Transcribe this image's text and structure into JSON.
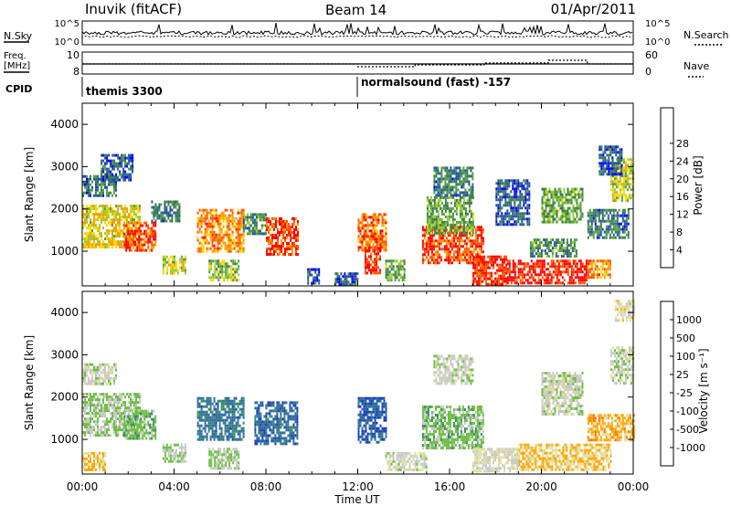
{
  "header": {
    "station": "Inuvik (fitACF)",
    "beam": "Beam 14",
    "date": "01/Apr/2011"
  },
  "summary_panels": {
    "nsky_label": "N.Sky",
    "nsky_ticks": [
      "10^5",
      "10^0"
    ],
    "nsearch_label": "N.Search",
    "nsearch_ticks": [
      "10^5",
      "10^0"
    ],
    "freq_label_line1": "Freq.",
    "freq_label_line2": "[MHz]",
    "freq_ticks": [
      "10",
      "8"
    ],
    "nave_label": "Nave",
    "nave_ticks": [
      "60",
      "0"
    ],
    "cpid_label": "CPID",
    "cpid_segments": [
      {
        "label": "themis 3300",
        "start_hour": 0
      },
      {
        "label": "normalsound (fast) -157",
        "start_hour": 12
      }
    ]
  },
  "colors": {
    "power_scale": [
      "#0000ff",
      "#2050b0",
      "#3a7a50",
      "#55a040",
      "#9acd32",
      "#ffd700",
      "#ff9900",
      "#ff5500",
      "#ff0000"
    ],
    "velocity_scale": [
      "#1a3fc0",
      "#2e6aa0",
      "#3a8a6a",
      "#6cc040",
      "#c8c8c8",
      "#e0e0a0",
      "#ffa500",
      "#ff7000",
      "#ff2000"
    ]
  },
  "chart_data": [
    {
      "type": "heatmap",
      "title": "Power",
      "ylabel": "Slant Range [km]",
      "xlabel": "Time UT",
      "xlim_hours": [
        0,
        24
      ],
      "ylim": [
        180,
        4500
      ],
      "yticks": [
        1000,
        2000,
        3000,
        4000
      ],
      "xticks": [
        "00:00",
        "04:00",
        "08:00",
        "12:00",
        "16:00",
        "20:00",
        "00:00"
      ],
      "colorbar": {
        "label": "Power [dB]",
        "ticks": [
          "4",
          "8",
          "12",
          "16",
          "20",
          "24",
          "28"
        ],
        "range": [
          0,
          30
        ]
      },
      "patches": [
        {
          "t0": 0.0,
          "t1": 2.5,
          "r0": 1100,
          "r1": 2100,
          "value": 18
        },
        {
          "t0": 1.8,
          "t1": 3.2,
          "r0": 1000,
          "r1": 1700,
          "value": 26
        },
        {
          "t0": 0.0,
          "t1": 1.5,
          "r0": 2300,
          "r1": 2800,
          "value": 8
        },
        {
          "t0": 0.8,
          "t1": 2.2,
          "r0": 2700,
          "r1": 3300,
          "value": 6
        },
        {
          "t0": 3.0,
          "t1": 4.2,
          "r0": 1700,
          "r1": 2200,
          "value": 8
        },
        {
          "t0": 3.5,
          "t1": 4.5,
          "r0": 500,
          "r1": 900,
          "value": 16
        },
        {
          "t0": 5.0,
          "t1": 7.0,
          "r0": 1000,
          "r1": 2000,
          "value": 22
        },
        {
          "t0": 5.5,
          "t1": 6.8,
          "r0": 300,
          "r1": 800,
          "value": 14
        },
        {
          "t0": 7.0,
          "t1": 8.0,
          "r0": 1400,
          "r1": 1900,
          "value": 10
        },
        {
          "t0": 8.0,
          "t1": 9.4,
          "r0": 900,
          "r1": 1800,
          "value": 26
        },
        {
          "t0": 9.8,
          "t1": 10.3,
          "r0": 250,
          "r1": 600,
          "value": 6
        },
        {
          "t0": 11.0,
          "t1": 12.0,
          "r0": 200,
          "r1": 500,
          "value": 6
        },
        {
          "t0": 12.0,
          "t1": 13.2,
          "r0": 1000,
          "r1": 1900,
          "value": 24
        },
        {
          "t0": 12.3,
          "t1": 13.0,
          "r0": 500,
          "r1": 1100,
          "value": 28
        },
        {
          "t0": 13.2,
          "t1": 14.0,
          "r0": 300,
          "r1": 800,
          "value": 12
        },
        {
          "t0": 14.8,
          "t1": 17.5,
          "r0": 700,
          "r1": 1600,
          "value": 26
        },
        {
          "t0": 15.0,
          "t1": 17.0,
          "r0": 1400,
          "r1": 2300,
          "value": 12
        },
        {
          "t0": 15.3,
          "t1": 17.0,
          "r0": 2300,
          "r1": 3000,
          "value": 8
        },
        {
          "t0": 17.0,
          "t1": 18.5,
          "r0": 250,
          "r1": 900,
          "value": 28
        },
        {
          "t0": 18.0,
          "t1": 19.5,
          "r0": 1600,
          "r1": 2700,
          "value": 6
        },
        {
          "t0": 18.5,
          "t1": 22.0,
          "r0": 250,
          "r1": 800,
          "value": 28
        },
        {
          "t0": 19.5,
          "t1": 21.5,
          "r0": 900,
          "r1": 1300,
          "value": 10
        },
        {
          "t0": 20.0,
          "t1": 21.8,
          "r0": 1700,
          "r1": 2500,
          "value": 12
        },
        {
          "t0": 22.0,
          "t1": 23.0,
          "r0": 400,
          "r1": 800,
          "value": 22
        },
        {
          "t0": 22.0,
          "t1": 23.8,
          "r0": 1300,
          "r1": 2000,
          "value": 8
        },
        {
          "t0": 23.0,
          "t1": 24.0,
          "r0": 2200,
          "r1": 3200,
          "value": 16
        },
        {
          "t0": 22.5,
          "t1": 23.5,
          "r0": 2800,
          "r1": 3500,
          "value": 6
        }
      ]
    },
    {
      "type": "heatmap",
      "title": "Velocity",
      "ylabel": "Slant Range [km]",
      "xlabel": "Time UT",
      "xlim_hours": [
        0,
        24
      ],
      "ylim": [
        180,
        4500
      ],
      "yticks": [
        1000,
        2000,
        3000,
        4000
      ],
      "xticks": [
        "00:00",
        "04:00",
        "08:00",
        "12:00",
        "16:00",
        "20:00",
        "00:00"
      ],
      "colorbar": {
        "label": "Velocity [m s⁻¹]",
        "ticks": [
          "1000",
          "500",
          "100",
          "25",
          "-25",
          "-100",
          "-500",
          "-1000"
        ],
        "range": [
          -1200,
          1200
        ]
      },
      "patches": [
        {
          "t0": 0.0,
          "t1": 2.5,
          "r0": 1100,
          "r1": 2100,
          "value": 150
        },
        {
          "t0": 1.8,
          "t1": 3.2,
          "r0": 1000,
          "r1": 1700,
          "value": 300
        },
        {
          "t0": 0.0,
          "t1": 1.5,
          "r0": 2300,
          "r1": 2800,
          "value": 0
        },
        {
          "t0": 0.0,
          "t1": 1.0,
          "r0": 300,
          "r1": 700,
          "value": -400
        },
        {
          "t0": 3.5,
          "t1": 4.5,
          "r0": 500,
          "r1": 900,
          "value": 120
        },
        {
          "t0": 5.0,
          "t1": 7.0,
          "r0": 1000,
          "r1": 2000,
          "value": 700
        },
        {
          "t0": 5.5,
          "t1": 6.8,
          "r0": 300,
          "r1": 800,
          "value": 150
        },
        {
          "t0": 7.5,
          "t1": 9.4,
          "r0": 900,
          "r1": 1900,
          "value": 800
        },
        {
          "t0": 12.0,
          "t1": 13.2,
          "r0": 900,
          "r1": 2000,
          "value": 900
        },
        {
          "t0": 13.2,
          "t1": 15.0,
          "r0": 250,
          "r1": 700,
          "value": -80
        },
        {
          "t0": 14.8,
          "t1": 17.5,
          "r0": 800,
          "r1": 1800,
          "value": 250
        },
        {
          "t0": 15.3,
          "t1": 17.0,
          "r0": 2300,
          "r1": 3000,
          "value": 0
        },
        {
          "t0": 17.0,
          "t1": 19.0,
          "r0": 250,
          "r1": 800,
          "value": -150
        },
        {
          "t0": 19.0,
          "t1": 23.0,
          "r0": 300,
          "r1": 900,
          "value": -400
        },
        {
          "t0": 20.0,
          "t1": 21.8,
          "r0": 1600,
          "r1": 2600,
          "value": 0
        },
        {
          "t0": 22.0,
          "t1": 24.0,
          "r0": 1000,
          "r1": 1600,
          "value": -500
        },
        {
          "t0": 23.0,
          "t1": 24.0,
          "r0": 2300,
          "r1": 3200,
          "value": 0
        },
        {
          "t0": 23.2,
          "t1": 24.0,
          "r0": 3800,
          "r1": 4300,
          "value": -200
        }
      ]
    }
  ]
}
